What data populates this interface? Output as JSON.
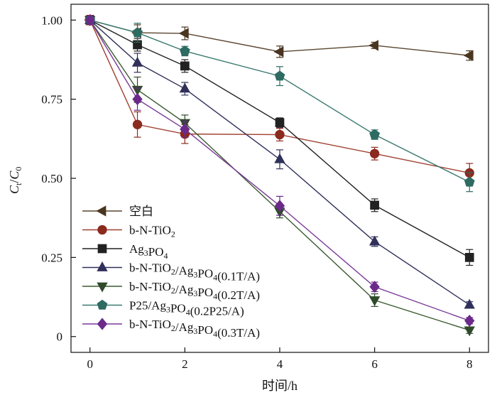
{
  "chart_data": {
    "type": "line",
    "xlabel": "时间/h",
    "ylabel": {
      "main": "C",
      "sub1": "t",
      "slash": "/",
      "main2": "C",
      "sub2": "0"
    },
    "xlim": [
      -0.4,
      8.4
    ],
    "ylim": [
      -0.05,
      1.05
    ],
    "xticks": [
      0,
      2,
      4,
      6,
      8
    ],
    "xtick_labels": [
      "0",
      "2",
      "4",
      "6",
      "8"
    ],
    "yticks": [
      0,
      0.25,
      0.5,
      0.75,
      1.0
    ],
    "ytick_labels": [
      "0",
      "0.25",
      "0.50",
      "0.75",
      "1.00"
    ],
    "grid": false,
    "legend_position": "bottom-left",
    "series": [
      {
        "name": "空白",
        "legend_parts": [
          [
            "空白",
            ""
          ]
        ],
        "marker": "triangle-left",
        "color": "#4a3520",
        "line_color": "#5a4630",
        "x": [
          0,
          1,
          2,
          4,
          6,
          8
        ],
        "y": [
          1.0,
          0.96,
          0.958,
          0.9,
          0.92,
          0.888
        ],
        "err": [
          0.015,
          0.025,
          0.02,
          0.018,
          0.01,
          0.015
        ]
      },
      {
        "name": "b-N-TiO2",
        "legend_parts": [
          [
            "b-N-TiO",
            ""
          ],
          [
            "2",
            "sub"
          ]
        ],
        "marker": "circle",
        "color": "#8b2a1e",
        "line_color": "#a04030",
        "x": [
          0,
          1,
          2,
          4,
          6,
          8
        ],
        "y": [
          1.0,
          0.67,
          0.64,
          0.638,
          0.578,
          0.517
        ],
        "err": [
          0.015,
          0.04,
          0.03,
          0.02,
          0.02,
          0.03
        ]
      },
      {
        "name": "Ag3PO4",
        "legend_parts": [
          [
            "Ag",
            ""
          ],
          [
            "3",
            "sub"
          ],
          [
            "PO",
            ""
          ],
          [
            "4",
            "sub"
          ]
        ],
        "marker": "square",
        "color": "#222222",
        "line_color": "#222222",
        "x": [
          0,
          1,
          2,
          4,
          6,
          8
        ],
        "y": [
          1.0,
          0.922,
          0.855,
          0.676,
          0.415,
          0.25
        ],
        "err": [
          0.012,
          0.02,
          0.02,
          0.015,
          0.02,
          0.025
        ]
      },
      {
        "name": "b-N-TiO2/Ag3PO4(0.1T/A)",
        "legend_parts": [
          [
            "b-N-TiO",
            ""
          ],
          [
            "2",
            "sub"
          ],
          [
            "/Ag",
            ""
          ],
          [
            "3",
            "sub"
          ],
          [
            "PO",
            ""
          ],
          [
            "4",
            "sub"
          ],
          [
            "(0.1T/A)",
            ""
          ]
        ],
        "marker": "triangle-up",
        "color": "#30305a",
        "line_color": "#30305a",
        "x": [
          0,
          1,
          2,
          4,
          6,
          8
        ],
        "y": [
          1.0,
          0.865,
          0.783,
          0.56,
          0.3,
          0.1
        ],
        "err": [
          0.012,
          0.03,
          0.02,
          0.03,
          0.015,
          0.01
        ]
      },
      {
        "name": "b-N-TiO2/Ag3PO4(0.2T/A)",
        "legend_parts": [
          [
            "b-N-TiO",
            ""
          ],
          [
            "2",
            "sub"
          ],
          [
            "/Ag",
            ""
          ],
          [
            "3",
            "sub"
          ],
          [
            "PO",
            ""
          ],
          [
            "4",
            "sub"
          ],
          [
            "(0.2T/A)",
            ""
          ]
        ],
        "marker": "triangle-down",
        "color": "#2f4a2a",
        "line_color": "#3a5a30",
        "x": [
          0,
          1,
          2,
          4,
          6,
          8
        ],
        "y": [
          1.0,
          0.78,
          0.675,
          0.395,
          0.115,
          0.02
        ],
        "err": [
          0.012,
          0.04,
          0.025,
          0.02,
          0.02,
          0.01
        ]
      },
      {
        "name": "P25/Ag3PO4(0.2P25/A)",
        "legend_parts": [
          [
            "P25/Ag",
            ""
          ],
          [
            "3",
            "sub"
          ],
          [
            "PO",
            ""
          ],
          [
            "4",
            "sub"
          ],
          [
            "(0.2P25/A)",
            ""
          ]
        ],
        "marker": "pentagon",
        "color": "#2e6b62",
        "line_color": "#3a7a70",
        "x": [
          0,
          1,
          2,
          4,
          6,
          8
        ],
        "y": [
          1.0,
          0.96,
          0.902,
          0.823,
          0.638,
          0.488
        ],
        "err": [
          0.012,
          0.03,
          0.015,
          0.03,
          0.015,
          0.03
        ]
      },
      {
        "name": "b-N-TiO2/Ag3PO4(0.3T/A)",
        "legend_parts": [
          [
            "b-N-TiO",
            ""
          ],
          [
            "2",
            "sub"
          ],
          [
            "/Ag",
            ""
          ],
          [
            "3",
            "sub"
          ],
          [
            "PO",
            ""
          ],
          [
            "4",
            "sub"
          ],
          [
            "(0.3T/A)",
            ""
          ]
        ],
        "marker": "diamond",
        "color": "#6b2a8a",
        "line_color": "#7a3a98",
        "x": [
          0,
          1,
          2,
          4,
          6,
          8
        ],
        "y": [
          1.0,
          0.75,
          0.655,
          0.413,
          0.157,
          0.05
        ],
        "err": [
          0.012,
          0.035,
          0.025,
          0.03,
          0.015,
          0.01
        ]
      }
    ]
  }
}
